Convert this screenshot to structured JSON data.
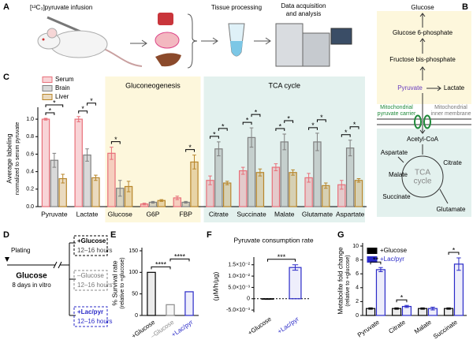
{
  "panel_labels": [
    "A",
    "B",
    "C",
    "D",
    "E",
    "F",
    "G"
  ],
  "panel_a": {
    "infusion": "[¹³C₃]pyruvate infusion",
    "processing": "Tissue processing",
    "acquisition": [
      "Data acquisition",
      "and analysis"
    ]
  },
  "panel_b": {
    "glucose": "Glucose",
    "g6p": "Glucose 6-phosphate",
    "fbp": "Fructose bis-phosphate",
    "pyruvate": "Pyruvate",
    "lactate": "Lactate",
    "carrier": [
      "Mitochondrial",
      "pyruvate carrier"
    ],
    "membrane": [
      "Mitochondrial",
      "inner membrane"
    ],
    "acetyl_coa": "Acetyl-CoA",
    "aspartate": "Aspartate",
    "citrate": "Citrate",
    "malate": "Malate",
    "tca": [
      "TCA",
      "cycle"
    ],
    "succinate": "Succinate",
    "glutamate": "Glutamate"
  },
  "panel_d": {
    "plating": "Plating",
    "glucose": "Glucose",
    "days": "8 days in vitro",
    "arms": [
      {
        "label": "+Glucose",
        "duration": "12–16 hours"
      },
      {
        "label": "–Glucose",
        "duration": "12–16 hours"
      },
      {
        "label": "+Lac/pyr",
        "duration": "12–16 hours"
      }
    ]
  },
  "chart_data": [
    {
      "type": "bar",
      "y_label": [
        "Average labeling",
        "normalized to serum pyruvate"
      ],
      "categories": [
        "Pyruvate",
        "Lactate",
        "Glucose",
        "G6P",
        "FBP",
        "Citrate",
        "Succinate",
        "Malate",
        "Glutamate",
        "Aspartate"
      ],
      "series": [
        {
          "name": "Serum",
          "color": "#e8707a",
          "values": [
            1.0,
            1.0,
            0.61,
            0.03,
            0.1,
            0.3,
            0.41,
            0.45,
            0.33,
            0.25
          ],
          "errors": [
            0.01,
            0.03,
            0.07,
            0.01,
            0.02,
            0.05,
            0.04,
            0.04,
            0.05,
            0.05
          ]
        },
        {
          "name": "Brain",
          "color": "#808080",
          "values": [
            0.53,
            0.59,
            0.21,
            0.05,
            0.05,
            0.66,
            0.79,
            0.74,
            0.74,
            0.67
          ],
          "errors": [
            0.08,
            0.07,
            0.09,
            0.01,
            0.01,
            0.08,
            0.11,
            0.09,
            0.1,
            0.09
          ]
        },
        {
          "name": "Liver",
          "color": "#b8862b",
          "values": [
            0.32,
            0.33,
            0.23,
            0.07,
            0.51,
            0.27,
            0.39,
            0.39,
            0.24,
            0.3
          ],
          "errors": [
            0.05,
            0.03,
            0.06,
            0.01,
            0.08,
            0.02,
            0.04,
            0.03,
            0.03,
            0.02
          ]
        }
      ],
      "ylim": [
        0,
        1.1
      ],
      "yticks": [
        {
          "value": 0,
          "label": "0.0"
        },
        {
          "value": 0.2,
          "label": "0.2"
        },
        {
          "value": 0.4,
          "label": "0.4"
        },
        {
          "value": 0.6,
          "label": "0.6"
        },
        {
          "value": 0.8,
          "label": "0.8"
        },
        {
          "value": 1,
          "label": "1.0"
        }
      ],
      "legend": "top-left",
      "regions": [
        {
          "label": "Gluconeogenesis",
          "from": "Glucose",
          "to": "FBP",
          "color": "#fdf7dc"
        },
        {
          "label": "TCA cycle",
          "from": "Citrate",
          "to": "Aspartate",
          "color": "#e3f1ee"
        }
      ],
      "significance": [
        {
          "category": "Pyruvate",
          "pair": [
            "Serum",
            "Brain"
          ],
          "label": "*"
        },
        {
          "category": "Pyruvate",
          "pair": [
            "Serum",
            "Liver"
          ],
          "label": "*"
        },
        {
          "category": "Lactate",
          "pair": [
            "Serum",
            "Brain"
          ],
          "label": "*"
        },
        {
          "category": "Lactate",
          "pair": [
            "Brain",
            "Liver"
          ],
          "label": "*"
        },
        {
          "category": "Glucose",
          "pair": [
            "Serum",
            "Brain"
          ],
          "label": "*"
        },
        {
          "category": "FBP",
          "pair": [
            "Brain",
            "Liver"
          ],
          "label": "*"
        },
        {
          "category": "Citrate",
          "pair": [
            "Serum",
            "Brain"
          ],
          "label": "*"
        },
        {
          "category": "Citrate",
          "pair": [
            "Brain",
            "Liver"
          ],
          "label": "*"
        },
        {
          "category": "Succinate",
          "pair": [
            "Serum",
            "Brain"
          ],
          "label": "*"
        },
        {
          "category": "Succinate",
          "pair": [
            "Brain",
            "Liver"
          ],
          "label": "*"
        },
        {
          "category": "Malate",
          "pair": [
            "Serum",
            "Brain"
          ],
          "label": "*"
        },
        {
          "category": "Malate",
          "pair": [
            "Brain",
            "Liver"
          ],
          "label": "*"
        },
        {
          "category": "Glutamate",
          "pair": [
            "Serum",
            "Brain"
          ],
          "label": "*"
        },
        {
          "category": "Glutamate",
          "pair": [
            "Brain",
            "Liver"
          ],
          "label": "*"
        },
        {
          "category": "Aspartate",
          "pair": [
            "Serum",
            "Brain"
          ],
          "label": "*"
        },
        {
          "category": "Aspartate",
          "pair": [
            "Brain",
            "Liver"
          ],
          "label": "*"
        }
      ]
    },
    {
      "type": "bar",
      "y_label": [
        "% Survival rate",
        "(relative to +glucose)"
      ],
      "categories": [
        "+Glucose",
        "–Glucose",
        "+Lac/pyr"
      ],
      "values": [
        100,
        25,
        55
      ],
      "colors": [
        "#000000",
        "#8c8c8c",
        "#2b2bc8"
      ],
      "ylim": [
        0,
        150
      ],
      "yticks": [
        0,
        50,
        100,
        150
      ],
      "significance": [
        {
          "pair": [
            "+Glucose",
            "–Glucose"
          ],
          "label": "****"
        },
        {
          "pair": [
            "–Glucose",
            "+Lac/pyr"
          ],
          "label": "****"
        }
      ]
    },
    {
      "type": "bar",
      "title": "Pyruvate consumption rate",
      "y_label": "(μM/h/μg)",
      "categories": [
        "+Glucose",
        "+Lac/pyr"
      ],
      "values": [
        -0.0002,
        0.0138
      ],
      "errors": [
        0.0001,
        0.0012
      ],
      "colors": [
        "#000000",
        "#2b2bc8"
      ],
      "ylim": [
        -0.006,
        0.017
      ],
      "yticks": [
        {
          "value": -0.005,
          "label": "-5.0×10⁻³"
        },
        0,
        {
          "value": 0.005,
          "label": "5.0×10⁻³"
        },
        {
          "value": 0.01,
          "label": "1.0×10⁻²"
        },
        {
          "value": 0.015,
          "label": "1.5×10⁻²"
        }
      ],
      "zero_line": "dotted",
      "significance": [
        {
          "pair": [
            "+Glucose",
            "+Lac/pyr"
          ],
          "label": "***"
        }
      ]
    },
    {
      "type": "bar",
      "y_label": [
        "Metabolite fold change",
        "(relative to +glucose)"
      ],
      "categories": [
        "Pyruvate",
        "Citrate",
        "Malate",
        "Succinate"
      ],
      "series": [
        {
          "name": "+Glucose",
          "color": "#000000",
          "values": [
            1,
            1,
            1,
            1
          ],
          "errors": [
            0.1,
            0.1,
            0.1,
            0.1
          ]
        },
        {
          "name": "+Lac/pyr",
          "color": "#2b2bc8",
          "values": [
            6.6,
            1.3,
            1.0,
            7.4
          ],
          "errors": [
            0.3,
            0.15,
            0.2,
            0.9
          ]
        }
      ],
      "ylim": [
        0,
        10
      ],
      "yticks": [
        0,
        2,
        4,
        6,
        8,
        10
      ],
      "legend": "top-left",
      "significance": [
        {
          "category": "Pyruvate",
          "pair": [
            "+Glucose",
            "+Lac/pyr"
          ],
          "label": "**"
        },
        {
          "category": "Citrate",
          "pair": [
            "+Glucose",
            "+Lac/pyr"
          ],
          "label": "*"
        },
        {
          "category": "Succinate",
          "pair": [
            "+Glucose",
            "+Lac/pyr"
          ],
          "label": "*"
        }
      ]
    }
  ]
}
